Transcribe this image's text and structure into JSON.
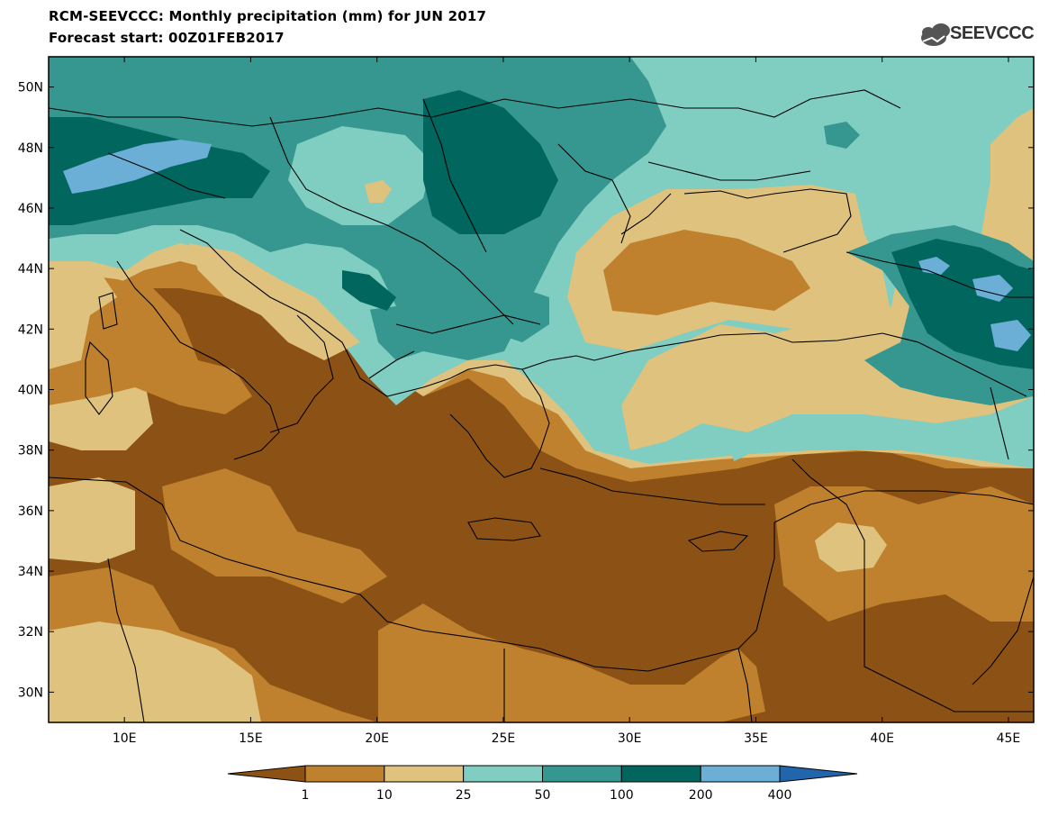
{
  "header": {
    "title": "RCM-SEEVCCC: Monthly precipitation (mm) for JUN 2017",
    "subtitle": "Forecast start: 00Z01FEB2017",
    "logo_text": "SEEVCCC",
    "logo_icon": "cloud-icon"
  },
  "map": {
    "lon_range": [
      7,
      46
    ],
    "lat_range": [
      29,
      51
    ],
    "lat_ticks": [
      {
        "value": 50,
        "label": "50N"
      },
      {
        "value": 48,
        "label": "48N"
      },
      {
        "value": 46,
        "label": "46N"
      },
      {
        "value": 44,
        "label": "44N"
      },
      {
        "value": 42,
        "label": "42N"
      },
      {
        "value": 40,
        "label": "40N"
      },
      {
        "value": 38,
        "label": "38N"
      },
      {
        "value": 36,
        "label": "36N"
      },
      {
        "value": 34,
        "label": "34N"
      },
      {
        "value": 32,
        "label": "32N"
      },
      {
        "value": 30,
        "label": "30N"
      }
    ],
    "lon_ticks": [
      {
        "value": 10,
        "label": "10E"
      },
      {
        "value": 15,
        "label": "15E"
      },
      {
        "value": 20,
        "label": "20E"
      },
      {
        "value": 25,
        "label": "25E"
      },
      {
        "value": 30,
        "label": "30E"
      },
      {
        "value": 35,
        "label": "35E"
      },
      {
        "value": 40,
        "label": "40E"
      },
      {
        "value": 45,
        "label": "45E"
      }
    ]
  },
  "colorbar": {
    "colors": [
      "#8c5114",
      "#bf812d",
      "#dfc27d",
      "#80cdc1",
      "#35978f",
      "#01665e",
      "#6baed6",
      "#2166ac"
    ],
    "labels": [
      "1",
      "10",
      "25",
      "50",
      "100",
      "200",
      "400"
    ]
  }
}
